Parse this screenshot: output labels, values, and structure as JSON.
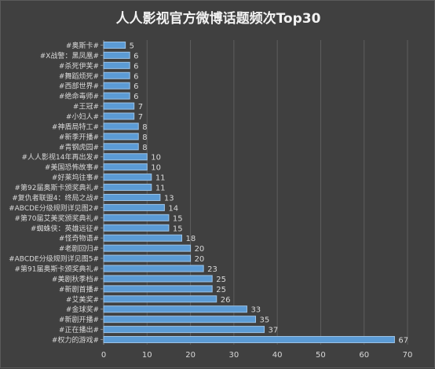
{
  "chart_data": {
    "type": "bar",
    "orientation": "horizontal",
    "title": "人人影视官方微博话题频次Top30",
    "xlabel": "",
    "ylabel": "",
    "xlim": [
      0,
      70
    ],
    "x_ticks": [
      0,
      10,
      20,
      30,
      40,
      50,
      60,
      70
    ],
    "grid": "vertical",
    "legend": "none",
    "colors": {
      "bar": "#5b9bd5",
      "bar_edge": "#9dc3e6",
      "background": "#404040",
      "grid": "#5e5e5e",
      "text": "#d9d9d9"
    },
    "categories": [
      "#奥斯卡#",
      "#X战警：黑凤凰#",
      "#杀死伊芙#",
      "#舞蹈烦死#",
      "#西部世界#",
      "#绝命毒师#",
      "#王冠#",
      "#小妇人#",
      "#神盾局特工#",
      "#新季开播#",
      "#青钢虎园#",
      "#人人影视14年再出发#",
      "#美国恐怖故事#",
      "#好莱坞往事#",
      "#第92届奥斯卡颁奖典礼#",
      "#复仇者联盟4：终局之战#",
      "#ABCDE分级规则详见图2#",
      "#第70届艾美奖颁奖典礼#",
      "#蜘蛛侠：英雄远征#",
      "#怪奇物语#",
      "#老剧回归#",
      "#ABCDE分级规则详见图5#",
      "#第91届奥斯卡颁奖典礼#",
      "#美剧秋季档#",
      "#新剧首播#",
      "#艾美奖#",
      "#金球奖#",
      "#新剧开播#",
      "#正在播出#",
      "#权力的游戏#"
    ],
    "values": [
      5,
      6,
      6,
      6,
      6,
      6,
      7,
      7,
      8,
      8,
      8,
      10,
      10,
      11,
      11,
      13,
      14,
      15,
      15,
      18,
      20,
      20,
      23,
      25,
      25,
      26,
      33,
      35,
      37,
      67
    ]
  }
}
